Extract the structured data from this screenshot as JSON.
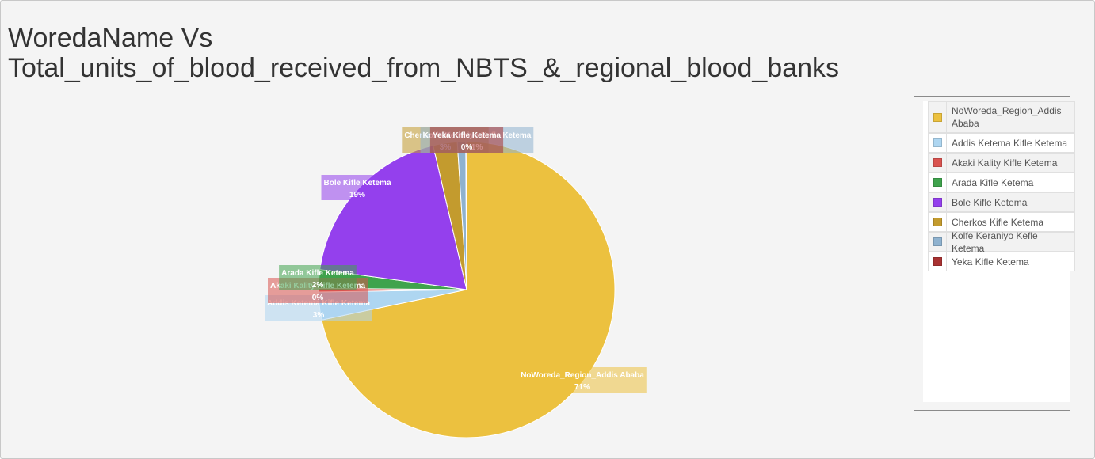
{
  "chart_data": {
    "type": "pie",
    "title_lines": [
      "WoredaName Vs",
      "Total_units_of_blood_received_from_NBTS_&_regional_blood_banks"
    ],
    "slices": [
      {
        "label": "NoWoreda_Region_Addis Ababa",
        "percent_label": "71%",
        "value": 71,
        "color": "#ecc13f"
      },
      {
        "label": "Addis Ketema Kifle Ketema",
        "percent_label": "3%",
        "value": 3,
        "color": "#aed6f1"
      },
      {
        "label": "Akaki Kality Kifle Ketema",
        "percent_label": "0%",
        "value": 0.4,
        "color": "#d9534f"
      },
      {
        "label": "Arada Kifle Ketema",
        "percent_label": "2%",
        "value": 2,
        "color": "#3fa34d"
      },
      {
        "label": "Bole Kifle Ketema",
        "percent_label": "19%",
        "value": 19,
        "color": "#9440ed"
      },
      {
        "label": "Cherkos Kifle Ketema",
        "percent_label": "3%",
        "value": 2.6,
        "color": "#c39b2e"
      },
      {
        "label": "Kolfe Keraniyo Kefle Ketema",
        "percent_label": "1%",
        "value": 0.9,
        "color": "#8fb2cf"
      },
      {
        "label": "Yeka Kifle Ketema",
        "percent_label": "0%",
        "value": 0.1,
        "color": "#a83232"
      }
    ],
    "legend_position": "right"
  },
  "legend": {
    "items": [
      {
        "label": "NoWoreda_Region_Addis Ababa",
        "color": "#ecc13f"
      },
      {
        "label": "Addis Ketema Kifle Ketema",
        "color": "#aed6f1"
      },
      {
        "label": "Akaki Kality Kifle Ketema",
        "color": "#d9534f"
      },
      {
        "label": "Arada Kifle Ketema",
        "color": "#3fa34d"
      },
      {
        "label": "Bole Kifle Ketema",
        "color": "#9440ed"
      },
      {
        "label": "Cherkos Kifle Ketema",
        "color": "#c39b2e"
      },
      {
        "label": "Kolfe Keraniyo Kefle Ketema",
        "color": "#8fb2cf"
      },
      {
        "label": "Yeka Kifle Ketema",
        "color": "#a83232"
      }
    ]
  }
}
